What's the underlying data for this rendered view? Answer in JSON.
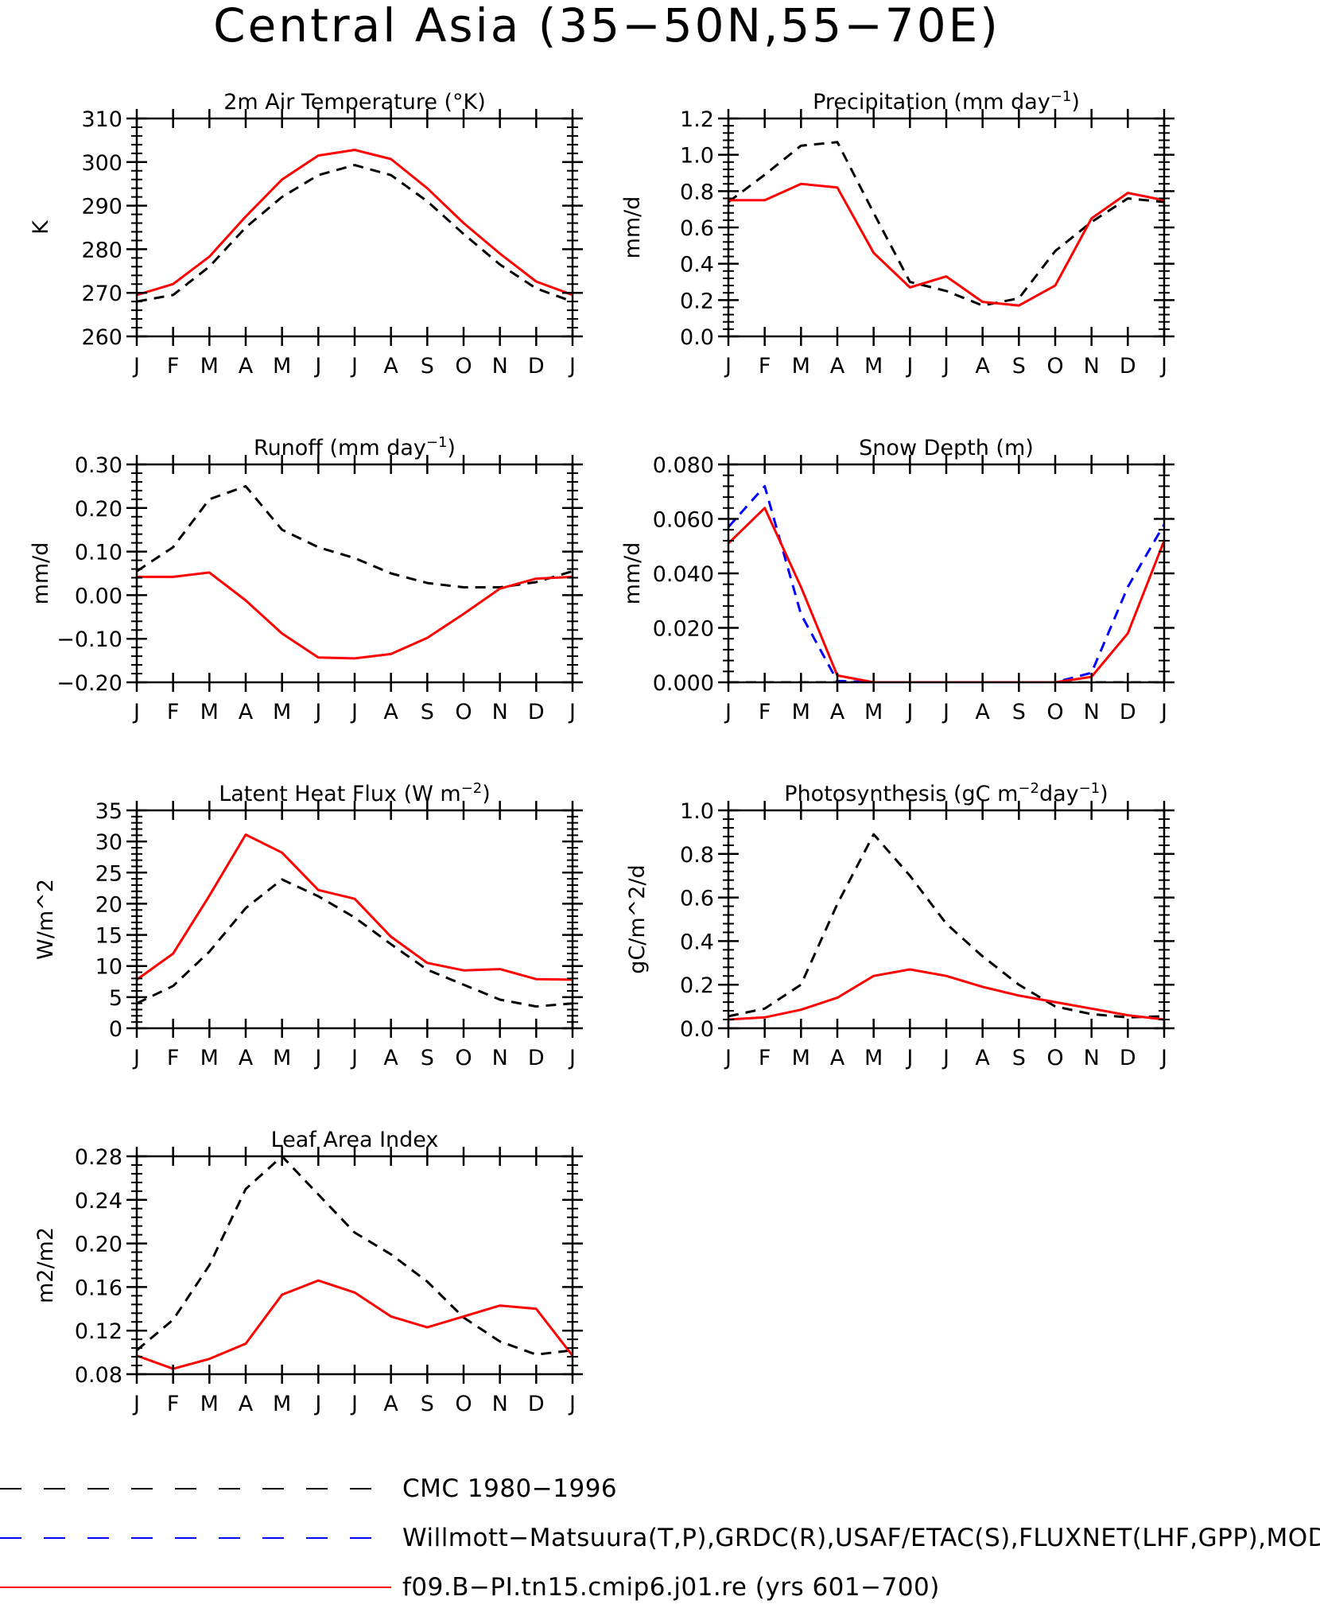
{
  "figure": {
    "title": "Central Asia (35−50N,55−70E)",
    "months": [
      "J",
      "F",
      "M",
      "A",
      "M",
      "J",
      "J",
      "A",
      "S",
      "O",
      "N",
      "D",
      "J"
    ]
  },
  "series_styles": {
    "cmc": {
      "color": "#000000",
      "dash": "dashed"
    },
    "obs": {
      "color": "#0000ff",
      "dash": "dashed"
    },
    "model": {
      "color": "#ff0000",
      "dash": "solid"
    }
  },
  "legend": {
    "entries": [
      {
        "key": "cmc",
        "label": "CMC 1980−1996"
      },
      {
        "key": "obs",
        "label": "Willmott−Matsuura(T,P),GRDC(R),USAF/ETAC(S),FLUXNET(LHF,GPP),MODIS("
      },
      {
        "key": "model",
        "label": "f09.B−PI.tn15.cmip6.j01.re (yrs 601−700)"
      }
    ]
  },
  "chart_data": [
    {
      "type": "line",
      "title_parts": [
        "2m Air Temperature (°K)"
      ],
      "ylabel": "K",
      "ylim": [
        260,
        310
      ],
      "yticks": [
        "260",
        "270",
        "280",
        "290",
        "300",
        "310"
      ],
      "series": [
        {
          "key": "cmc",
          "values": [
            268,
            269.5,
            276,
            285,
            292,
            297,
            299.3,
            297,
            291,
            283.5,
            276.5,
            271,
            268
          ]
        },
        {
          "key": "model",
          "values": [
            269.5,
            272,
            278.3,
            287.5,
            296,
            301.5,
            302.8,
            300.7,
            294,
            286,
            279,
            272.6,
            269.5
          ]
        }
      ]
    },
    {
      "type": "line",
      "title_parts": [
        "Precipitation (mm day",
        "−1",
        ")"
      ],
      "ylabel": "mm/d",
      "ylim": [
        0,
        1.2
      ],
      "yticks": [
        "0.0",
        "0.2",
        "0.4",
        "0.6",
        "0.8",
        "1.0",
        "1.2"
      ],
      "series": [
        {
          "key": "cmc",
          "values": [
            0.74,
            0.89,
            1.05,
            1.07,
            0.68,
            0.3,
            0.25,
            0.17,
            0.21,
            0.47,
            0.63,
            0.76,
            0.74
          ]
        },
        {
          "key": "model",
          "values": [
            0.75,
            0.75,
            0.84,
            0.82,
            0.46,
            0.27,
            0.33,
            0.19,
            0.17,
            0.28,
            0.65,
            0.79,
            0.75
          ]
        }
      ]
    },
    {
      "type": "line",
      "title_parts": [
        "Runoff (mm day",
        "−1",
        ")"
      ],
      "ylabel": "mm/d",
      "ylim": [
        -0.2,
        0.3
      ],
      "yticks": [
        "−0.20",
        "−0.10",
        "0.00",
        "0.10",
        "0.20",
        "0.30"
      ],
      "series": [
        {
          "key": "cmc",
          "values": [
            0.055,
            0.11,
            0.22,
            0.25,
            0.15,
            0.11,
            0.085,
            0.05,
            0.028,
            0.018,
            0.018,
            0.03,
            0.055
          ]
        },
        {
          "key": "model",
          "values": [
            0.042,
            0.042,
            0.052,
            -0.012,
            -0.088,
            -0.143,
            -0.145,
            -0.135,
            -0.098,
            -0.043,
            0.015,
            0.038,
            0.042
          ]
        }
      ]
    },
    {
      "type": "line",
      "title_parts": [
        "Snow Depth (m)"
      ],
      "ylabel": "mm/d",
      "ylim": [
        0,
        0.08
      ],
      "yticks": [
        "0.000",
        "0.020",
        "0.040",
        "0.060",
        "0.080"
      ],
      "series": [
        {
          "key": "cmc",
          "values": [
            0,
            0,
            0,
            0,
            0,
            0,
            0,
            0,
            0,
            0,
            0,
            0,
            0
          ]
        },
        {
          "key": "obs",
          "values": [
            0.057,
            0.072,
            0.025,
            0.0005,
            0,
            0,
            0,
            0,
            0,
            0,
            0.0035,
            0.035,
            0.058
          ]
        },
        {
          "key": "model",
          "values": [
            0.051,
            0.064,
            0.035,
            0.0025,
            0,
            0,
            0,
            0,
            0,
            0,
            0.002,
            0.018,
            0.052
          ]
        }
      ]
    },
    {
      "type": "line",
      "title_parts": [
        "Latent Heat Flux (W m",
        "−2",
        ")"
      ],
      "ylabel": "W/m^2",
      "ylim": [
        0,
        35
      ],
      "yticks": [
        "0",
        "5",
        "10",
        "15",
        "20",
        "25",
        "30",
        "35"
      ],
      "series": [
        {
          "key": "cmc",
          "values": [
            4,
            6.8,
            12.3,
            19.3,
            23.9,
            21.2,
            17.8,
            13.5,
            9.4,
            7,
            4.6,
            3.5,
            4
          ]
        },
        {
          "key": "model",
          "values": [
            7.8,
            12,
            21.3,
            31.1,
            28.2,
            22.2,
            20.8,
            14.7,
            10.5,
            9.3,
            9.5,
            7.9,
            7.8
          ]
        }
      ]
    },
    {
      "type": "line",
      "title_parts": [
        "Photosynthesis (gC m",
        "−2",
        "day",
        "−1",
        ")"
      ],
      "ylabel": "gC/m^2/d",
      "ylim": [
        0,
        1.0
      ],
      "yticks": [
        "0.0",
        "0.2",
        "0.4",
        "0.6",
        "0.8",
        "1.0"
      ],
      "series": [
        {
          "key": "cmc",
          "values": [
            0.055,
            0.09,
            0.2,
            0.57,
            0.89,
            0.7,
            0.48,
            0.33,
            0.2,
            0.1,
            0.065,
            0.05,
            0.055
          ]
        },
        {
          "key": "model",
          "values": [
            0.04,
            0.05,
            0.085,
            0.14,
            0.24,
            0.27,
            0.24,
            0.19,
            0.15,
            0.12,
            0.09,
            0.06,
            0.04
          ]
        }
      ]
    },
    {
      "type": "line",
      "title_parts": [
        "Leaf Area Index"
      ],
      "ylabel": "m2/m2",
      "ylim": [
        0.08,
        0.28
      ],
      "yticks": [
        "0.08",
        "0.12",
        "0.16",
        "0.20",
        "0.24",
        "0.28"
      ],
      "series": [
        {
          "key": "cmc",
          "values": [
            0.102,
            0.13,
            0.18,
            0.25,
            0.28,
            0.245,
            0.21,
            0.19,
            0.165,
            0.132,
            0.11,
            0.098,
            0.102
          ]
        },
        {
          "key": "model",
          "values": [
            0.097,
            0.085,
            0.094,
            0.108,
            0.153,
            0.166,
            0.155,
            0.133,
            0.123,
            0.133,
            0.143,
            0.14,
            0.097
          ]
        }
      ]
    }
  ]
}
